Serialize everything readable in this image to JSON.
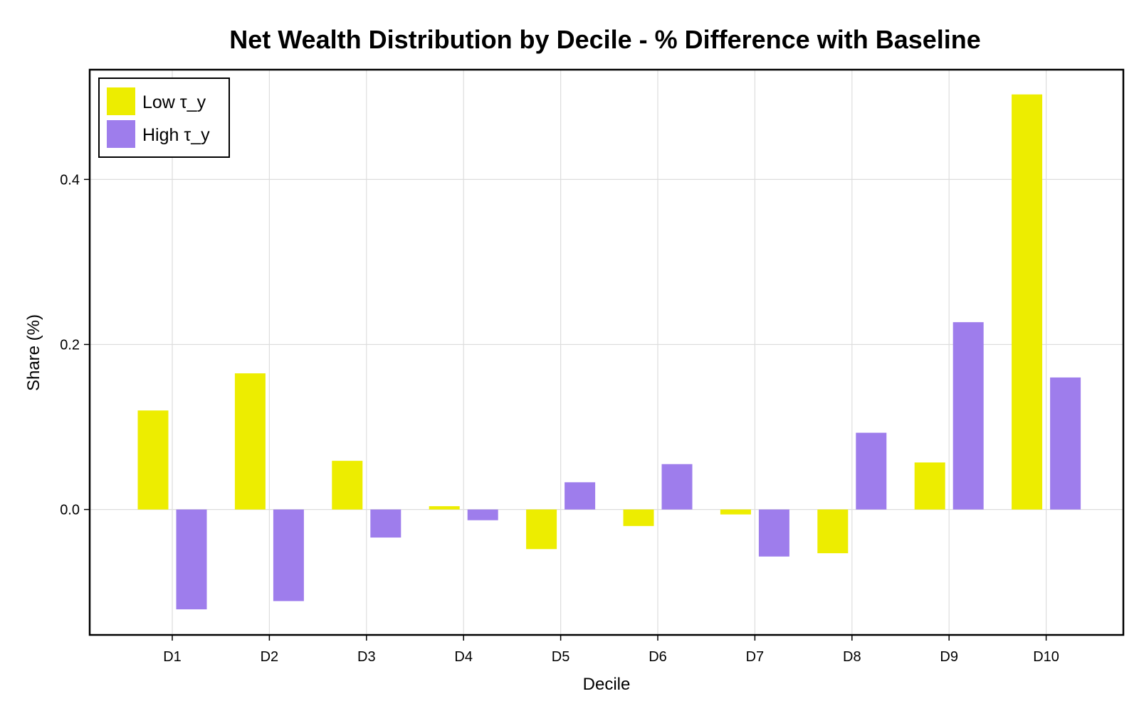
{
  "colors": {
    "low": "#eded00",
    "high": "#9e7dec",
    "grid": "#dddddd",
    "frame": "#000000"
  },
  "chart_data": {
    "type": "bar",
    "title": "Net Wealth Distribution by Decile - % Difference with Baseline",
    "xlabel": "Decile",
    "ylabel": "Share (%)",
    "categories": [
      "D1",
      "D2",
      "D3",
      "D4",
      "D5",
      "D6",
      "D7",
      "D8",
      "D9",
      "D10"
    ],
    "series": [
      {
        "name": "Low τ_y",
        "color_key": "low",
        "values": [
          0.12,
          0.165,
          0.059,
          0.004,
          -0.048,
          -0.02,
          -0.006,
          -0.053,
          0.057,
          0.503
        ]
      },
      {
        "name": "High τ_y",
        "color_key": "high",
        "values": [
          -0.121,
          -0.111,
          -0.034,
          -0.013,
          0.033,
          0.055,
          -0.057,
          0.093,
          0.227,
          0.16
        ]
      }
    ],
    "ylim": [
      -0.152,
      0.533
    ],
    "yticks": [
      0.0,
      0.2,
      0.4
    ],
    "ytick_labels": [
      "0.0",
      "0.2",
      "0.4"
    ],
    "grid": true,
    "legend_position": "top-left"
  }
}
